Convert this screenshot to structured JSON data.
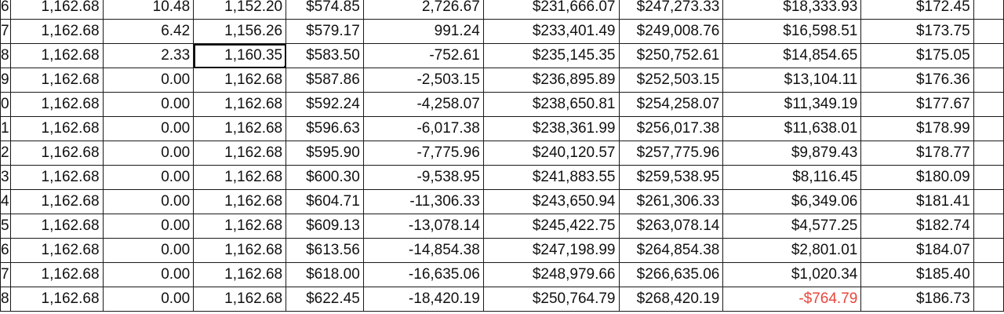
{
  "spreadsheet": {
    "selected_cell": {
      "row": 2,
      "col": 3
    },
    "negative_color": "#e8453c",
    "rows": [
      [
        "6",
        "1,162.68",
        "10.48",
        "1,152.20",
        "$574.85",
        "2,726.67",
        "$231,666.07",
        "$247,273.33",
        "$18,333.93",
        "$172.45"
      ],
      [
        "7",
        "1,162.68",
        "6.42",
        "1,156.26",
        "$579.17",
        "991.24",
        "$233,401.49",
        "$249,008.76",
        "$16,598.51",
        "$173.75"
      ],
      [
        "8",
        "1,162.68",
        "2.33",
        "1,160.35",
        "$583.50",
        "-752.61",
        "$235,145.35",
        "$250,752.61",
        "$14,854.65",
        "$175.05"
      ],
      [
        "9",
        "1,162.68",
        "0.00",
        "1,162.68",
        "$587.86",
        "-2,503.15",
        "$236,895.89",
        "$252,503.15",
        "$13,104.11",
        "$176.36"
      ],
      [
        "0",
        "1,162.68",
        "0.00",
        "1,162.68",
        "$592.24",
        "-4,258.07",
        "$238,650.81",
        "$254,258.07",
        "$11,349.19",
        "$177.67"
      ],
      [
        "1",
        "1,162.68",
        "0.00",
        "1,162.68",
        "$596.63",
        "-6,017.38",
        "$238,361.99",
        "$256,017.38",
        "$11,638.01",
        "$178.99"
      ],
      [
        "2",
        "1,162.68",
        "0.00",
        "1,162.68",
        "$595.90",
        "-7,775.96",
        "$240,120.57",
        "$257,775.96",
        "$9,879.43",
        "$178.77"
      ],
      [
        "3",
        "1,162.68",
        "0.00",
        "1,162.68",
        "$600.30",
        "-9,538.95",
        "$241,883.55",
        "$259,538.95",
        "$8,116.45",
        "$180.09"
      ],
      [
        "4",
        "1,162.68",
        "0.00",
        "1,162.68",
        "$604.71",
        "-11,306.33",
        "$243,650.94",
        "$261,306.33",
        "$6,349.06",
        "$181.41"
      ],
      [
        "5",
        "1,162.68",
        "0.00",
        "1,162.68",
        "$609.13",
        "-13,078.14",
        "$245,422.75",
        "$263,078.14",
        "$4,577.25",
        "$182.74"
      ],
      [
        "6",
        "1,162.68",
        "0.00",
        "1,162.68",
        "$613.56",
        "-14,854.38",
        "$247,198.99",
        "$264,854.38",
        "$2,801.01",
        "$184.07"
      ],
      [
        "7",
        "1,162.68",
        "0.00",
        "1,162.68",
        "$618.00",
        "-16,635.06",
        "$248,979.66",
        "$266,635.06",
        "$1,020.34",
        "$185.40"
      ],
      [
        "8",
        "1,162.68",
        "0.00",
        "1,162.68",
        "$622.45",
        "-18,420.19",
        "$250,764.79",
        "$268,420.19",
        "-$764.79",
        "$186.73"
      ]
    ]
  }
}
